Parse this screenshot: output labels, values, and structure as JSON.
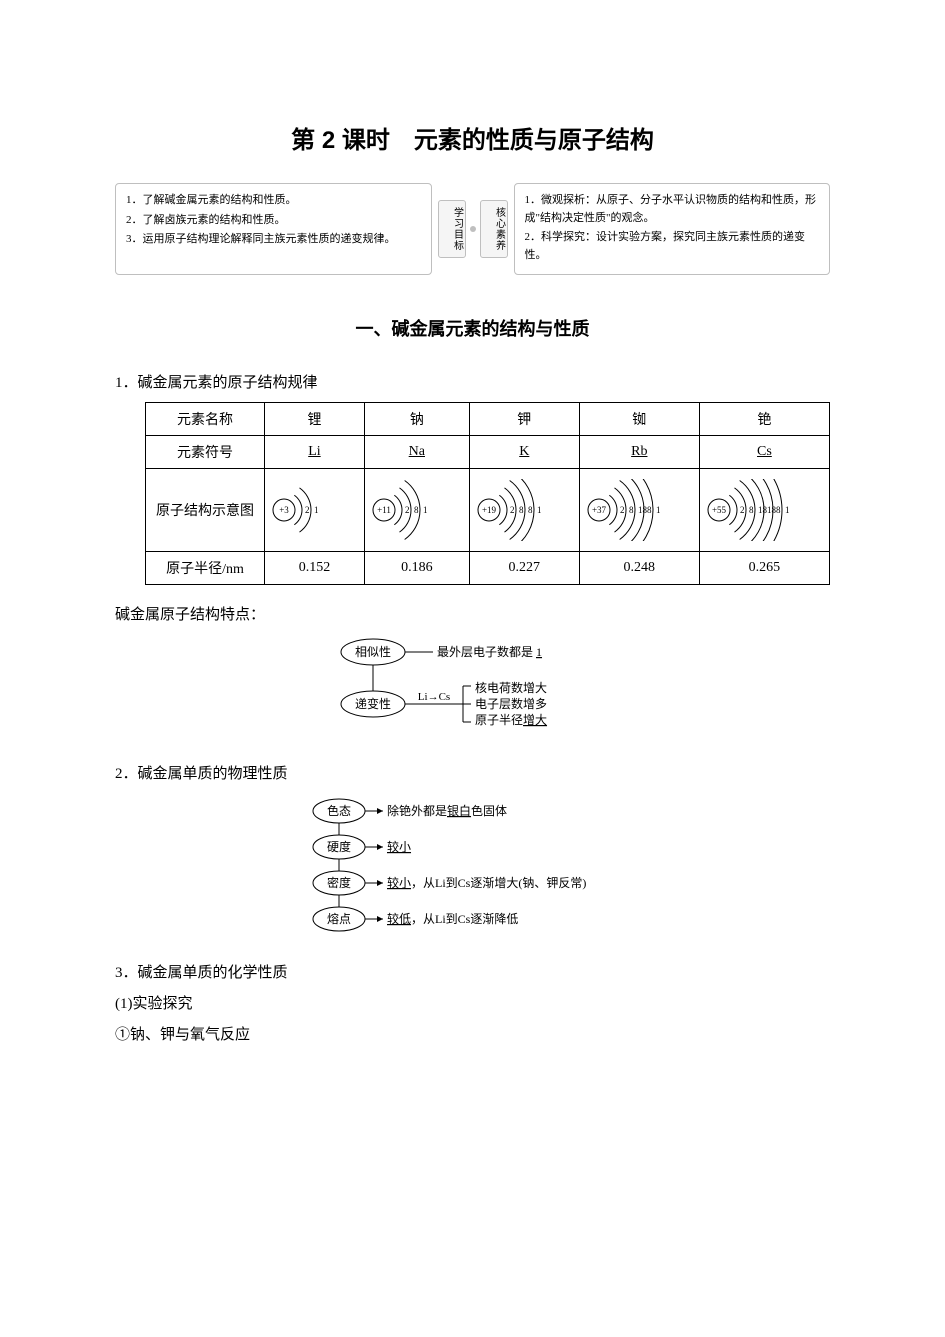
{
  "page": {
    "title": "第 2 课时　元素的性质与原子结构"
  },
  "objectives": {
    "left_tag": "学习目标",
    "right_tag": "核心素养",
    "left": [
      "1．了解碱金属元素的结构和性质。",
      "2．了解卤族元素的结构和性质。",
      "3．运用原子结构理论解释同主族元素性质的递变规律。"
    ],
    "right": [
      "1．微观探析：从原子、分子水平认识物质的结构和性质，形成\"结构决定性质\"的观念。",
      "2．科学探究：设计实验方案，探究同主族元素性质的递变性。"
    ]
  },
  "section1": {
    "heading": "一、碱金属元素的结构与性质",
    "item1_label": "1．碱金属元素的原子结构规律",
    "table": {
      "row_headers": [
        "元素名称",
        "元素符号",
        "原子结构示意图",
        "原子半径/nm"
      ],
      "cols": [
        {
          "name": "锂",
          "symbol": "Li",
          "nucleus": "+3",
          "shells": [
            2,
            1
          ],
          "radius": "0.152"
        },
        {
          "name": "钠",
          "symbol": "Na",
          "nucleus": "+11",
          "shells": [
            2,
            8,
            1
          ],
          "radius": "0.186"
        },
        {
          "name": "钾",
          "symbol": "K",
          "nucleus": "+19",
          "shells": [
            2,
            8,
            8,
            1
          ],
          "radius": "0.227"
        },
        {
          "name": "铷",
          "symbol": "Rb",
          "nucleus": "+37",
          "shells": [
            2,
            8,
            18,
            8,
            1
          ],
          "radius": "0.248"
        },
        {
          "name": "铯",
          "symbol": "Cs",
          "nucleus": "+55",
          "shells": [
            2,
            8,
            18,
            18,
            8,
            1
          ],
          "radius": "0.265"
        }
      ]
    },
    "struct_feature_label": "碱金属原子结构特点：",
    "struct_diagram": {
      "top_bubble": "相似性",
      "top_line": "最外层电子数都是",
      "top_underline": "1",
      "bottom_bubble": "递变性",
      "arrow_label": "Li→Cs",
      "bottom_lines": [
        "核电荷数增大",
        "电子层数增多",
        "原子半径"
      ],
      "bottom_underline": "增大"
    },
    "item2_label": "2．碱金属单质的物理性质",
    "phys_diagram": {
      "bubbles": [
        "色态",
        "硬度",
        "密度",
        "熔点"
      ],
      "lines": [
        {
          "pre": "除铯外都是",
          "u": "银白",
          "post": "色固体"
        },
        {
          "pre": "",
          "u": "较小",
          "post": ""
        },
        {
          "pre": "",
          "u": "较小",
          "post": "，从Li到Cs逐渐增大(钠、钾反常)"
        },
        {
          "pre": "",
          "u": "较低",
          "post": "，从Li到Cs逐渐降低"
        }
      ]
    },
    "item3_label": "3．碱金属单质的化学性质",
    "item3_sub1": "(1)实验探究",
    "item3_sub1a": "①钠、钾与氧气反应"
  }
}
